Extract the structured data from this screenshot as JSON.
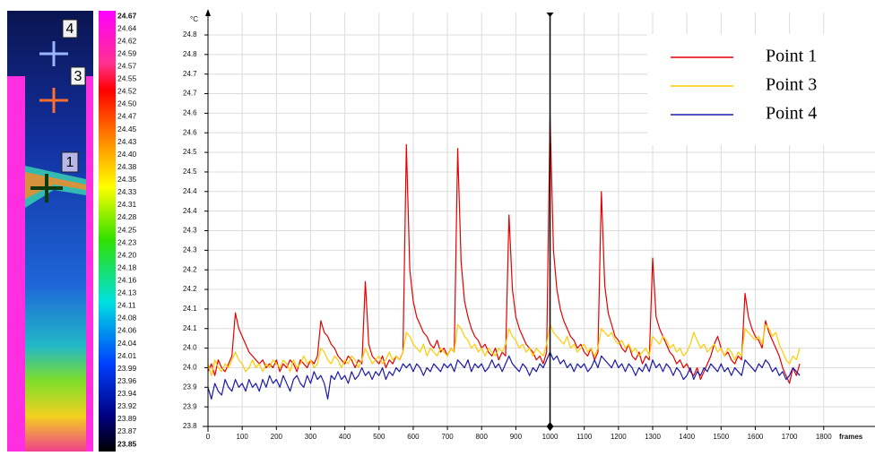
{
  "chart_data": {
    "type": "line",
    "y_unit": "°C",
    "x_label": "frames",
    "x": [
      0,
      10,
      20,
      30,
      40,
      50,
      60,
      70,
      80,
      90,
      100,
      110,
      120,
      130,
      140,
      150,
      160,
      170,
      180,
      190,
      200,
      210,
      220,
      230,
      240,
      250,
      260,
      270,
      280,
      290,
      300,
      310,
      320,
      330,
      340,
      350,
      360,
      370,
      380,
      390,
      400,
      410,
      420,
      430,
      440,
      450,
      460,
      470,
      480,
      490,
      500,
      510,
      520,
      530,
      540,
      550,
      560,
      570,
      580,
      590,
      600,
      610,
      620,
      630,
      640,
      650,
      660,
      670,
      680,
      690,
      700,
      710,
      720,
      730,
      740,
      750,
      760,
      770,
      780,
      790,
      800,
      810,
      820,
      830,
      840,
      850,
      860,
      870,
      880,
      890,
      900,
      910,
      920,
      930,
      940,
      950,
      960,
      970,
      980,
      990,
      1000,
      1010,
      1020,
      1030,
      1040,
      1050,
      1060,
      1070,
      1080,
      1090,
      1100,
      1110,
      1120,
      1130,
      1140,
      1150,
      1160,
      1170,
      1180,
      1190,
      1200,
      1210,
      1220,
      1230,
      1240,
      1250,
      1260,
      1270,
      1280,
      1290,
      1300,
      1310,
      1320,
      1330,
      1340,
      1350,
      1360,
      1370,
      1380,
      1390,
      1400,
      1410,
      1420,
      1430,
      1440,
      1450,
      1460,
      1470,
      1480,
      1490,
      1500,
      1510,
      1520,
      1530,
      1540,
      1550,
      1560,
      1570,
      1580,
      1590,
      1600,
      1610,
      1620,
      1630,
      1640,
      1650,
      1660,
      1670,
      1680,
      1690,
      1700,
      1710,
      1720,
      1730
    ],
    "series": [
      {
        "name": "Point 1",
        "color": "#e60000",
        "values": [
          23.94,
          23.96,
          23.93,
          23.97,
          23.95,
          23.94,
          23.96,
          23.98,
          24.09,
          24.05,
          24.03,
          24.01,
          23.99,
          23.98,
          23.97,
          23.96,
          23.97,
          23.95,
          23.96,
          23.95,
          23.97,
          23.94,
          23.96,
          23.95,
          23.97,
          23.96,
          23.94,
          23.97,
          23.96,
          23.95,
          23.97,
          23.96,
          23.98,
          24.07,
          24.04,
          24.03,
          24.01,
          24.0,
          23.98,
          23.97,
          23.96,
          23.98,
          23.97,
          23.95,
          23.97,
          23.96,
          24.17,
          24.01,
          23.98,
          23.97,
          23.96,
          23.98,
          23.95,
          23.97,
          23.96,
          23.98,
          23.97,
          23.99,
          24.52,
          24.2,
          24.12,
          24.08,
          24.06,
          24.04,
          24.03,
          24.01,
          24.0,
          24.02,
          23.99,
          24.0,
          23.98,
          24.0,
          23.99,
          24.51,
          24.22,
          24.12,
          24.08,
          24.05,
          24.03,
          24.02,
          24.0,
          24.01,
          23.99,
          23.98,
          24.0,
          23.97,
          23.99,
          23.98,
          24.34,
          24.15,
          24.08,
          24.05,
          24.03,
          24.01,
          24.0,
          23.99,
          23.97,
          23.98,
          23.96,
          23.99,
          24.59,
          24.25,
          24.15,
          24.1,
          24.07,
          24.05,
          24.03,
          24.02,
          24.0,
          24.01,
          23.99,
          23.98,
          24.0,
          23.97,
          23.99,
          24.4,
          24.16,
          24.09,
          24.06,
          24.03,
          24.02,
          24.0,
          23.99,
          24.01,
          23.98,
          23.97,
          23.99,
          23.96,
          23.98,
          23.97,
          24.23,
          24.08,
          24.05,
          24.03,
          24.01,
          23.99,
          23.98,
          23.96,
          23.97,
          23.95,
          23.96,
          23.94,
          23.93,
          23.95,
          23.92,
          23.94,
          23.96,
          23.98,
          24.01,
          24.03,
          24.0,
          23.98,
          23.99,
          23.97,
          23.96,
          23.98,
          23.97,
          24.14,
          24.08,
          24.05,
          24.03,
          24.02,
          24.0,
          24.07,
          24.04,
          24.02,
          24.0,
          23.98,
          23.95,
          23.93,
          23.91,
          23.95,
          23.93,
          23.96
        ]
      },
      {
        "name": "Point 3",
        "color": "#ffcc00",
        "values": [
          23.96,
          23.93,
          23.97,
          23.95,
          23.94,
          23.96,
          23.95,
          23.97,
          23.99,
          23.97,
          23.96,
          23.94,
          23.95,
          23.97,
          23.95,
          23.96,
          23.94,
          23.96,
          23.95,
          23.97,
          23.96,
          23.95,
          23.97,
          23.96,
          23.94,
          23.97,
          23.95,
          23.96,
          23.98,
          23.96,
          23.97,
          23.95,
          23.96,
          24.0,
          23.99,
          23.97,
          23.96,
          23.98,
          23.97,
          23.95,
          23.97,
          23.96,
          23.98,
          23.97,
          23.95,
          23.97,
          24.0,
          23.98,
          23.96,
          23.97,
          23.98,
          23.96,
          23.97,
          23.99,
          23.97,
          23.98,
          23.97,
          23.99,
          24.04,
          24.03,
          24.01,
          24.0,
          23.99,
          24.01,
          23.98,
          24.0,
          23.99,
          23.98,
          24.0,
          23.99,
          23.98,
          24.0,
          23.99,
          24.06,
          24.05,
          24.03,
          24.02,
          24.0,
          24.01,
          23.99,
          24.0,
          23.98,
          24.0,
          23.99,
          23.98,
          24.0,
          23.99,
          24.01,
          24.05,
          24.03,
          24.02,
          24.0,
          24.01,
          23.99,
          24.0,
          23.98,
          24.0,
          23.99,
          23.98,
          24.01,
          24.06,
          24.04,
          24.03,
          24.02,
          24.01,
          24.03,
          24.0,
          24.01,
          23.99,
          24.0,
          24.01,
          23.99,
          24.0,
          23.98,
          24.0,
          24.05,
          24.04,
          24.03,
          24.04,
          24.02,
          24.01,
          24.02,
          24.0,
          24.01,
          23.99,
          24.0,
          23.98,
          23.99,
          24.0,
          23.98,
          24.03,
          24.02,
          24.01,
          24.03,
          24.02,
          24.0,
          24.01,
          23.99,
          24.0,
          23.98,
          23.99,
          24.01,
          24.04,
          24.02,
          24.0,
          24.01,
          23.99,
          24.0,
          24.01,
          23.99,
          24.0,
          23.98,
          24.0,
          23.99,
          23.97,
          23.99,
          23.98,
          24.05,
          24.04,
          24.03,
          24.02,
          24.03,
          24.01,
          24.06,
          24.05,
          24.03,
          24.04,
          24.01,
          23.99,
          23.97,
          23.96,
          23.98,
          23.97,
          24.0
        ]
      },
      {
        "name": "Point 4",
        "color": "#1a1aa6",
        "values": [
          23.9,
          23.87,
          23.91,
          23.89,
          23.88,
          23.92,
          23.9,
          23.89,
          23.92,
          23.9,
          23.91,
          23.89,
          23.92,
          23.9,
          23.91,
          23.89,
          23.92,
          23.9,
          23.93,
          23.91,
          23.92,
          23.9,
          23.93,
          23.91,
          23.89,
          23.92,
          23.93,
          23.91,
          23.9,
          23.93,
          23.91,
          23.94,
          23.92,
          23.93,
          23.91,
          23.87,
          23.93,
          23.92,
          23.94,
          23.92,
          23.93,
          23.91,
          23.94,
          23.92,
          23.93,
          23.95,
          23.93,
          23.94,
          23.92,
          23.94,
          23.93,
          23.95,
          23.92,
          23.94,
          23.93,
          23.95,
          23.94,
          23.96,
          23.95,
          23.96,
          23.94,
          23.96,
          23.95,
          23.93,
          23.95,
          23.94,
          23.96,
          23.95,
          23.94,
          23.96,
          23.95,
          23.96,
          23.94,
          23.97,
          23.96,
          23.95,
          23.97,
          23.94,
          23.96,
          23.95,
          23.96,
          23.94,
          23.95,
          23.97,
          23.95,
          23.96,
          23.94,
          23.96,
          23.98,
          23.96,
          23.95,
          23.94,
          23.96,
          23.95,
          23.93,
          23.95,
          23.94,
          23.96,
          23.95,
          23.97,
          23.99,
          23.97,
          23.98,
          23.96,
          23.97,
          23.95,
          23.96,
          23.94,
          23.96,
          23.95,
          23.96,
          23.94,
          23.95,
          23.97,
          23.95,
          23.98,
          23.97,
          23.96,
          23.95,
          23.97,
          23.95,
          23.96,
          23.94,
          23.96,
          23.95,
          23.93,
          23.95,
          23.94,
          23.96,
          23.94,
          23.97,
          23.95,
          23.96,
          23.94,
          23.96,
          23.95,
          23.93,
          23.95,
          23.94,
          23.92,
          23.93,
          23.95,
          23.92,
          23.94,
          23.93,
          23.95,
          23.94,
          23.96,
          23.95,
          23.94,
          23.96,
          23.94,
          23.95,
          23.93,
          23.95,
          23.94,
          23.93,
          23.97,
          23.96,
          23.95,
          23.94,
          23.96,
          23.95,
          23.97,
          23.96,
          23.94,
          23.95,
          23.93,
          23.94,
          23.92,
          23.93,
          23.95,
          23.94,
          23.93
        ]
      }
    ],
    "xlim": [
      0,
      1950
    ],
    "ylim": [
      23.8,
      24.8
    ],
    "xticks": [
      0,
      100,
      200,
      300,
      400,
      500,
      600,
      700,
      800,
      900,
      1000,
      1100,
      1200,
      1300,
      1400,
      1500,
      1600,
      1700,
      1800
    ],
    "yticks": [
      23.8,
      {
        "value": 23.85,
        "label": "23.9"
      },
      23.9,
      {
        "value": 23.95,
        "label": "24.0"
      },
      {
        "value": 24,
        "label": "24.0"
      },
      {
        "value": 24.05,
        "label": "24.1"
      },
      24.1,
      {
        "value": 24.15,
        "label": "24.2"
      },
      24.2,
      {
        "value": 24.25,
        "label": "24.3"
      },
      24.3,
      {
        "value": 24.35,
        "label": "24.4"
      },
      24.4,
      {
        "value": 24.45,
        "label": "24.5"
      },
      24.5,
      {
        "value": 24.55,
        "label": "24.6"
      },
      24.6,
      {
        "value": 24.65,
        "label": "24.7"
      },
      24.7,
      {
        "value": 24.75,
        "label": "24.8"
      },
      24.8
    ],
    "grid": true,
    "legend": "upper right",
    "cursor": 1000
  },
  "colorbar": {
    "ticks": [
      24.67,
      24.64,
      24.62,
      24.59,
      24.57,
      24.55,
      24.52,
      {
        "value": 24.5,
        "label": "24.50"
      },
      24.47,
      24.45,
      24.43,
      {
        "value": 24.4,
        "label": "24.40"
      },
      24.38,
      24.35,
      24.33,
      24.31,
      24.28,
      24.25,
      24.23,
      {
        "value": 24.2,
        "label": "24.20"
      },
      24.18,
      24.16,
      24.13,
      24.11,
      24.08,
      24.06,
      24.04,
      24.01,
      23.99,
      23.96,
      23.94,
      23.92,
      23.89,
      23.87,
      23.85
    ]
  },
  "thermal_image": {
    "markers": [
      "4",
      "3",
      "1"
    ]
  }
}
